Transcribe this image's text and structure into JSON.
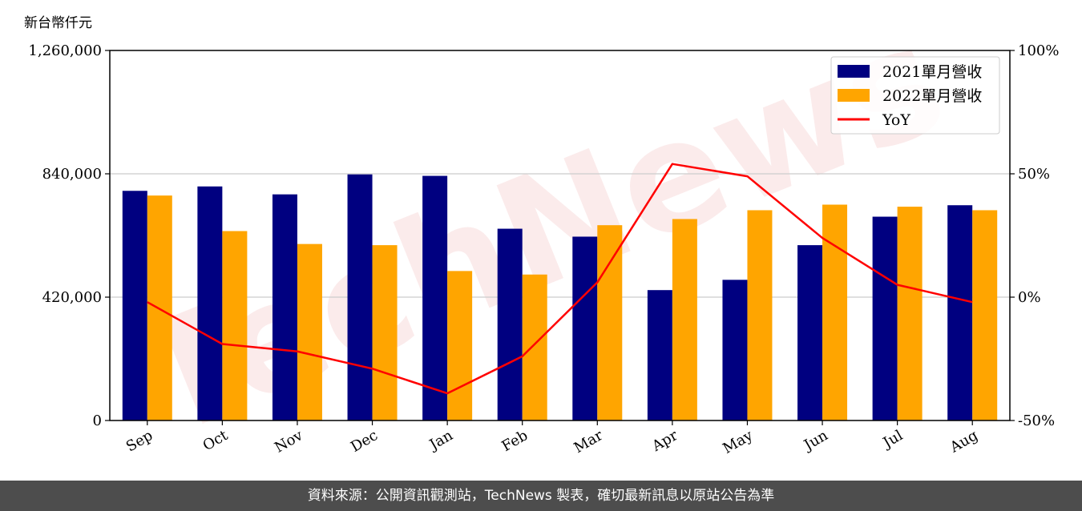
{
  "unit_label": "新台幣仟元",
  "footer": "資料來源：公開資訊觀測站，TechNews 製表，確切最新訊息以原站公告為準",
  "watermark": "TechNews",
  "chart_data": {
    "type": "bar",
    "categories": [
      "Sep",
      "Oct",
      "Nov",
      "Dec",
      "Jan",
      "Feb",
      "Mar",
      "Apr",
      "May",
      "Jun",
      "Jul",
      "Aug"
    ],
    "series": [
      {
        "name": "2021單月營收",
        "type": "bar",
        "color": "#000080",
        "values": [
          782000,
          797000,
          770000,
          838000,
          833000,
          653000,
          626000,
          444000,
          479000,
          597000,
          694000,
          733000
        ]
      },
      {
        "name": "2022單月營收",
        "type": "bar",
        "color": "#ffa500",
        "values": [
          766000,
          645000,
          601000,
          597000,
          509000,
          497000,
          665000,
          686000,
          716000,
          735000,
          728000,
          716000
        ]
      },
      {
        "name": "YoY",
        "type": "line",
        "axis": "right",
        "color": "#ff0000",
        "values": [
          -2,
          -19,
          -22,
          -29,
          -39,
          -24,
          6,
          54,
          49,
          24,
          5,
          -2
        ]
      }
    ],
    "ylim": [
      0,
      1260000
    ],
    "yticks": [
      "0",
      "420,000",
      "840,000",
      "1,260,000"
    ],
    "yticks_values": [
      0,
      420000,
      840000,
      1260000
    ],
    "y2lim": [
      -50,
      100
    ],
    "y2ticks": [
      "-50%",
      "0%",
      "50%",
      "100%"
    ],
    "y2ticks_values": [
      -50,
      0,
      50,
      100
    ],
    "grid": "horizontal",
    "legend": "top-right"
  }
}
